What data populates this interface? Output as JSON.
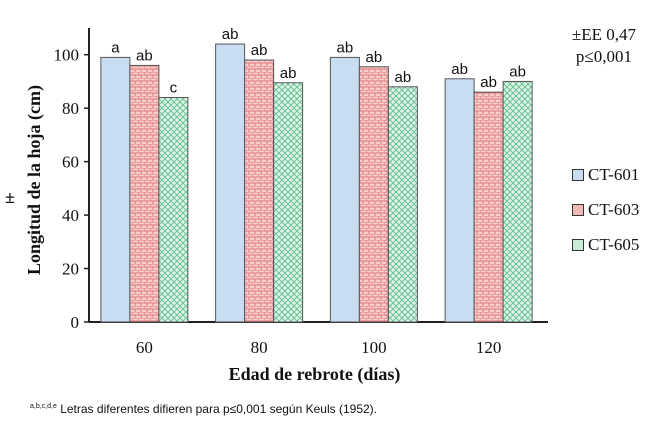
{
  "chart_data": {
    "type": "bar",
    "categories": [
      "60",
      "80",
      "100",
      "120"
    ],
    "series": [
      {
        "name": "CT-601",
        "color": "#c9ddf2",
        "values": [
          99,
          104,
          99,
          91
        ],
        "labels": [
          "a",
          "ab",
          "ab",
          "ab"
        ]
      },
      {
        "name": "CT-603",
        "color": "#f2b8b8",
        "values": [
          96,
          98,
          95.5,
          86
        ],
        "labels": [
          "ab",
          "ab",
          "ab",
          "ab"
        ]
      },
      {
        "name": "CT-605",
        "color": "#c8ecd8",
        "values": [
          84,
          89.5,
          88,
          90
        ],
        "labels": [
          "c",
          "ab",
          "ab",
          "ab"
        ]
      }
    ],
    "ylim": [
      0,
      110
    ],
    "yticks": [
      0,
      20,
      40,
      60,
      80,
      100
    ],
    "xlabel": "Edad de rebrote (días)",
    "ylabel": "Longitud de la hoja (cm)",
    "ylabel_prefix": "±",
    "stats": [
      "±EE 0,47",
      "p≤0,001"
    ],
    "legend_position": "right",
    "footnote": {
      "superscript": "a,b,c,d,e",
      "text": "Letras diferentes difieren para p≤0,001 según Keuls (1952)."
    }
  }
}
